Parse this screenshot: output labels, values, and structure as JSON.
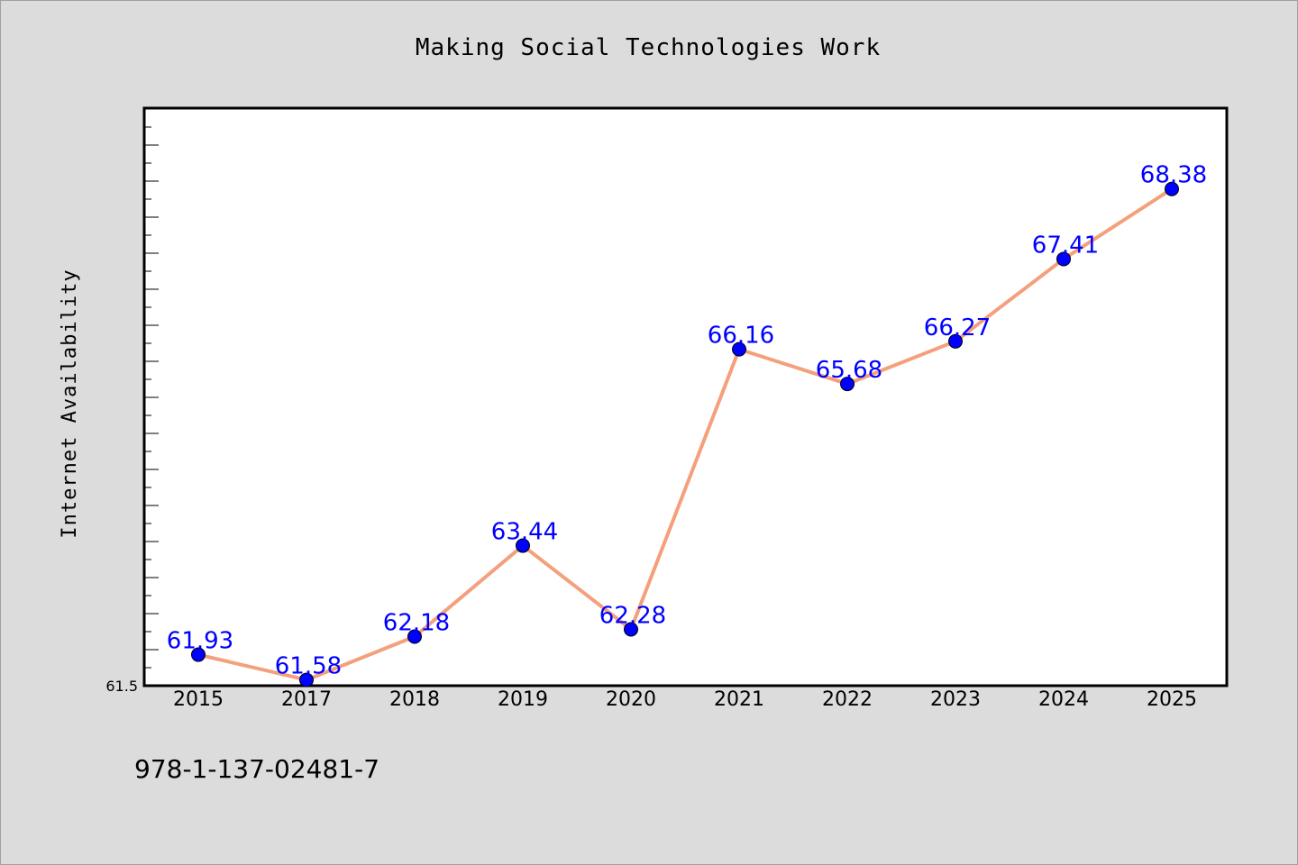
{
  "colors": {
    "background": "#dcdcdc",
    "plot_background": "#ffffff",
    "line": "#f4a07c",
    "marker": "#0000ff",
    "data_label": "#0000ff"
  },
  "footer_text": "978-1-137-02481-7",
  "chart_data": {
    "type": "line",
    "title": "Making Social Technologies Work",
    "xlabel": "",
    "ylabel": "Internet Availability",
    "categories": [
      "2015",
      "2017",
      "2018",
      "2019",
      "2020",
      "2021",
      "2022",
      "2023",
      "2024",
      "2025"
    ],
    "series": [
      {
        "values": [
          61.93,
          61.58,
          62.18,
          63.44,
          62.28,
          66.16,
          65.68,
          66.27,
          67.41,
          68.38
        ],
        "labels": [
          "61.93",
          "61.58",
          "62.18",
          "63.44",
          "62.28",
          "66.16",
          "65.68",
          "66.27",
          "67.41",
          "68.38"
        ]
      }
    ],
    "ylim": [
      61.5,
      69.5
    ],
    "yticks": [
      {
        "value": 61.5,
        "label": "61.5"
      }
    ],
    "grid": false,
    "legend": "none"
  }
}
